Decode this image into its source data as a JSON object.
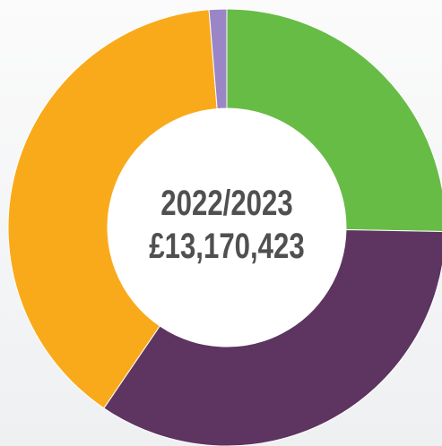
{
  "chart_data": {
    "type": "donut",
    "title": "2022/2023",
    "subtitle": "£13,170,423",
    "values": [
      25.3,
      34.2,
      39.2,
      1.3
    ],
    "colors": [
      "#67bc46",
      "#5e3460",
      "#f9aa1b",
      "#9a86c6"
    ]
  }
}
